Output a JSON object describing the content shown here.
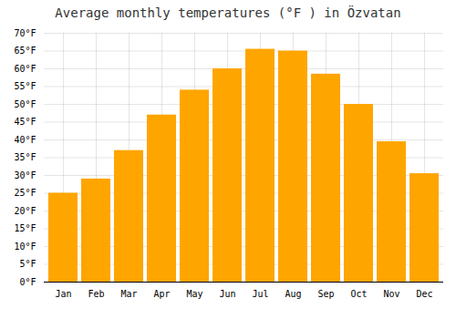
{
  "chart_data": {
    "type": "bar",
    "title": "Average monthly temperatures (°F ) in Özvatan",
    "categories": [
      "Jan",
      "Feb",
      "Mar",
      "Apr",
      "May",
      "Jun",
      "Jul",
      "Aug",
      "Sep",
      "Oct",
      "Nov",
      "Dec"
    ],
    "values": [
      25,
      29,
      37,
      47,
      54,
      60,
      65.5,
      65,
      58.5,
      50,
      39.5,
      30.5
    ],
    "color": "#FFA500",
    "ylim": [
      0,
      70
    ],
    "yticks": [
      {
        "value": 0,
        "label": "0°F"
      },
      {
        "value": 5,
        "label": "5°F"
      },
      {
        "value": 10,
        "label": "10°F"
      },
      {
        "value": 15,
        "label": "15°F"
      },
      {
        "value": 20,
        "label": "20°F"
      },
      {
        "value": 25,
        "label": "25°F"
      },
      {
        "value": 30,
        "label": "30°F"
      },
      {
        "value": 35,
        "label": "35°F"
      },
      {
        "value": 40,
        "label": "40°F"
      },
      {
        "value": 45,
        "label": "45°F"
      },
      {
        "value": 50,
        "label": "50°F"
      },
      {
        "value": 55,
        "label": "55°F"
      },
      {
        "value": 60,
        "label": "60°F"
      },
      {
        "value": 65,
        "label": "65°F"
      },
      {
        "value": 70,
        "label": "70°F"
      }
    ],
    "grid": true
  }
}
